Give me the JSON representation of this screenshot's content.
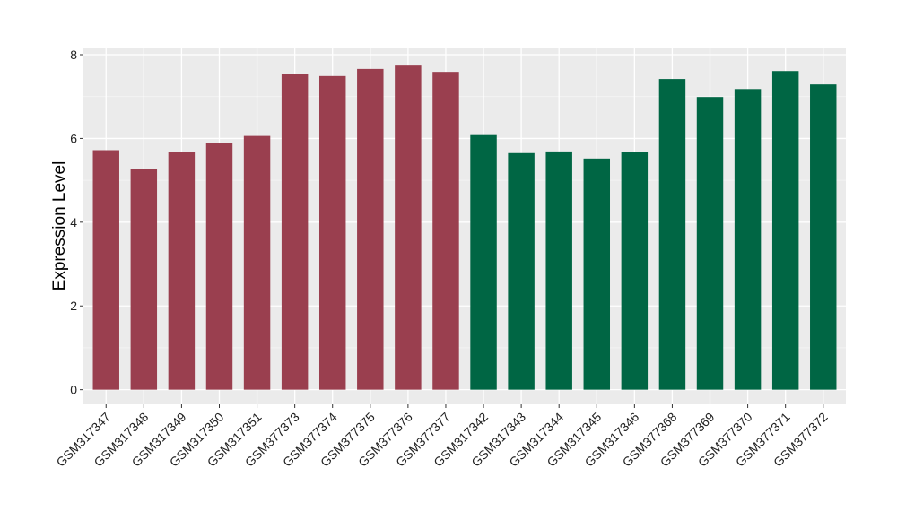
{
  "chart_data": {
    "type": "bar",
    "title": "",
    "xlabel": "",
    "ylabel": "Expression Level",
    "ylim": [
      -0.35,
      8.15
    ],
    "yticks": [
      0,
      2,
      4,
      6,
      8
    ],
    "grid": true,
    "background": "#EBEBEB",
    "categories": [
      "GSM317347",
      "GSM317348",
      "GSM317349",
      "GSM317350",
      "GSM317351",
      "GSM377373",
      "GSM377374",
      "GSM377375",
      "GSM377376",
      "GSM377377",
      "GSM317342",
      "GSM317343",
      "GSM317344",
      "GSM317345",
      "GSM317346",
      "GSM377368",
      "GSM377369",
      "GSM377370",
      "GSM377371",
      "GSM377372"
    ],
    "values": [
      5.72,
      5.26,
      5.67,
      5.89,
      6.06,
      7.55,
      7.49,
      7.66,
      7.74,
      7.59,
      6.08,
      5.65,
      5.69,
      5.52,
      5.67,
      7.42,
      6.99,
      7.18,
      7.61,
      7.29
    ],
    "colors": [
      "#9A3F4F",
      "#9A3F4F",
      "#9A3F4F",
      "#9A3F4F",
      "#9A3F4F",
      "#9A3F4F",
      "#9A3F4F",
      "#9A3F4F",
      "#9A3F4F",
      "#9A3F4F",
      "#006644",
      "#006644",
      "#006644",
      "#006644",
      "#006644",
      "#006644",
      "#006644",
      "#006644",
      "#006644",
      "#006644"
    ]
  }
}
